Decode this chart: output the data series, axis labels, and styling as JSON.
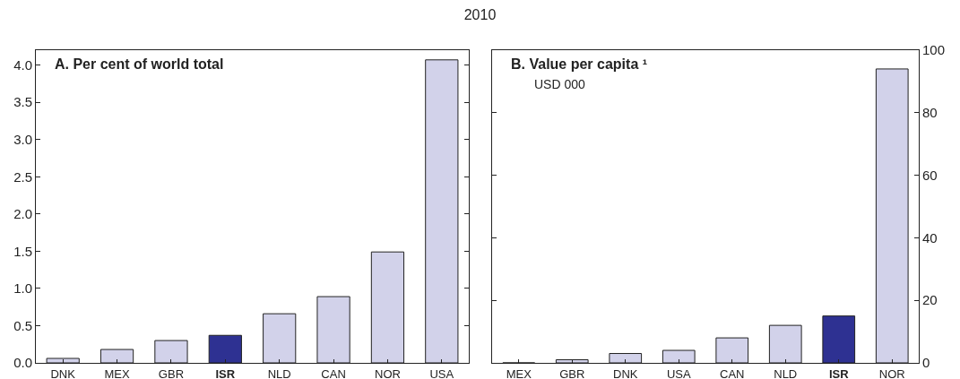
{
  "chart_data": [
    {
      "type": "bar",
      "title": "A. Per cent of world total",
      "annotations": [
        "2010"
      ],
      "categories": [
        "DNK",
        "MEX",
        "GBR",
        "ISR",
        "NLD",
        "CAN",
        "NOR",
        "USA"
      ],
      "values": [
        0.06,
        0.18,
        0.3,
        0.37,
        0.66,
        0.89,
        1.49,
        4.07
      ],
      "colors": [
        "#d2d2ea",
        "#d2d2ea",
        "#d2d2ea",
        "#2e3192",
        "#d2d2ea",
        "#d2d2ea",
        "#d2d2ea",
        "#d2d2ea"
      ],
      "ylim": [
        0,
        4.2
      ],
      "yticks": [
        {
          "value": 0,
          "label": "0.0"
        },
        0.5,
        {
          "value": 1,
          "label": "1.0"
        },
        1.5,
        {
          "value": 2,
          "label": "2.0"
        },
        2.5,
        {
          "value": 3,
          "label": "3.0"
        },
        3.5,
        {
          "value": 4,
          "label": "4.0"
        }
      ],
      "grid": false,
      "legend": false
    },
    {
      "type": "bar",
      "title": "B. Value per capita ¹",
      "subtitle": "USD 000",
      "categories": [
        "MEX",
        "GBR",
        "DNK",
        "USA",
        "CAN",
        "NLD",
        "ISR",
        "NOR"
      ],
      "values": [
        0,
        1,
        3,
        4,
        8,
        12,
        15,
        94
      ],
      "colors": [
        "#d2d2ea",
        "#d2d2ea",
        "#d2d2ea",
        "#d2d2ea",
        "#d2d2ea",
        "#d2d2ea",
        "#2e3192",
        "#d2d2ea"
      ],
      "ylim": [
        0,
        100
      ],
      "yticks": [
        0,
        20,
        40,
        60,
        80,
        100
      ],
      "grid": false,
      "legend": false
    }
  ]
}
